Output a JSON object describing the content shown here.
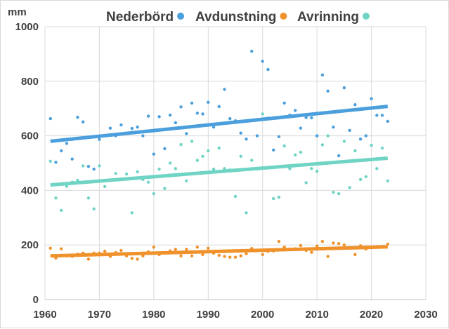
{
  "chart_data": {
    "type": "scatter",
    "title": "",
    "ylabel": "mm",
    "xlabel": "",
    "xlim": [
      1960,
      2030
    ],
    "ylim": [
      0,
      1000
    ],
    "x_ticks": [
      1960,
      1970,
      1980,
      1990,
      2000,
      2010,
      2020,
      2030
    ],
    "y_ticks": [
      0,
      200,
      400,
      600,
      800,
      1000
    ],
    "grid": true,
    "legend_position": "top",
    "series": [
      {
        "name": "Nederbörd",
        "color": "#4a9fdc",
        "trend": {
          "x": [
            1961,
            2023
          ],
          "y": [
            580,
            708
          ]
        },
        "points": [
          [
            1961,
            663
          ],
          [
            1962,
            503
          ],
          [
            1963,
            545
          ],
          [
            1964,
            572
          ],
          [
            1965,
            515
          ],
          [
            1966,
            668
          ],
          [
            1967,
            651
          ],
          [
            1968,
            488
          ],
          [
            1969,
            478
          ],
          [
            1970,
            587
          ],
          [
            1971,
            600
          ],
          [
            1972,
            628
          ],
          [
            1973,
            600
          ],
          [
            1974,
            640
          ],
          [
            1975,
            610
          ],
          [
            1976,
            627
          ],
          [
            1977,
            632
          ],
          [
            1978,
            600
          ],
          [
            1979,
            672
          ],
          [
            1980,
            533
          ],
          [
            1981,
            670
          ],
          [
            1982,
            553
          ],
          [
            1983,
            676
          ],
          [
            1984,
            648
          ],
          [
            1985,
            706
          ],
          [
            1986,
            608
          ],
          [
            1987,
            720
          ],
          [
            1988,
            683
          ],
          [
            1989,
            680
          ],
          [
            1990,
            723
          ],
          [
            1991,
            632
          ],
          [
            1992,
            707
          ],
          [
            1993,
            770
          ],
          [
            1994,
            663
          ],
          [
            1995,
            655
          ],
          [
            1996,
            610
          ],
          [
            1997,
            588
          ],
          [
            1998,
            910
          ],
          [
            1999,
            600
          ],
          [
            2000,
            873
          ],
          [
            2001,
            843
          ],
          [
            2002,
            548
          ],
          [
            2003,
            597
          ],
          [
            2004,
            720
          ],
          [
            2005,
            676
          ],
          [
            2006,
            693
          ],
          [
            2007,
            628
          ],
          [
            2008,
            667
          ],
          [
            2009,
            666
          ],
          [
            2010,
            600
          ],
          [
            2011,
            823
          ],
          [
            2012,
            764
          ],
          [
            2013,
            632
          ],
          [
            2014,
            527
          ],
          [
            2015,
            776
          ],
          [
            2016,
            620
          ],
          [
            2017,
            714
          ],
          [
            2018,
            588
          ],
          [
            2019,
            600
          ],
          [
            2020,
            736
          ],
          [
            2021,
            675
          ],
          [
            2022,
            675
          ],
          [
            2023,
            653
          ]
        ]
      },
      {
        "name": "Avdunstning",
        "color": "#f0922b",
        "trend": {
          "x": [
            1961,
            2023
          ],
          "y": [
            160,
            193
          ]
        },
        "points": [
          [
            1961,
            188
          ],
          [
            1962,
            152
          ],
          [
            1963,
            186
          ],
          [
            1964,
            160
          ],
          [
            1965,
            158
          ],
          [
            1966,
            166
          ],
          [
            1967,
            170
          ],
          [
            1968,
            148
          ],
          [
            1969,
            170
          ],
          [
            1970,
            170
          ],
          [
            1971,
            177
          ],
          [
            1972,
            158
          ],
          [
            1973,
            172
          ],
          [
            1974,
            180
          ],
          [
            1975,
            160
          ],
          [
            1976,
            151
          ],
          [
            1977,
            148
          ],
          [
            1978,
            160
          ],
          [
            1979,
            175
          ],
          [
            1980,
            192
          ],
          [
            1981,
            165
          ],
          [
            1982,
            170
          ],
          [
            1983,
            178
          ],
          [
            1984,
            184
          ],
          [
            1985,
            160
          ],
          [
            1986,
            184
          ],
          [
            1987,
            160
          ],
          [
            1988,
            192
          ],
          [
            1989,
            165
          ],
          [
            1990,
            188
          ],
          [
            1991,
            170
          ],
          [
            1992,
            162
          ],
          [
            1993,
            158
          ],
          [
            1994,
            155
          ],
          [
            1995,
            155
          ],
          [
            1996,
            160
          ],
          [
            1997,
            168
          ],
          [
            1998,
            187
          ],
          [
            1999,
            180
          ],
          [
            2000,
            165
          ],
          [
            2001,
            177
          ],
          [
            2002,
            178
          ],
          [
            2003,
            213
          ],
          [
            2004,
            192
          ],
          [
            2005,
            185
          ],
          [
            2006,
            186
          ],
          [
            2007,
            198
          ],
          [
            2008,
            180
          ],
          [
            2009,
            173
          ],
          [
            2010,
            196
          ],
          [
            2011,
            213
          ],
          [
            2012,
            158
          ],
          [
            2013,
            207
          ],
          [
            2014,
            205
          ],
          [
            2015,
            200
          ],
          [
            2016,
            190
          ],
          [
            2017,
            165
          ],
          [
            2018,
            197
          ],
          [
            2019,
            185
          ],
          [
            2020,
            190
          ],
          [
            2021,
            194
          ],
          [
            2022,
            195
          ],
          [
            2023,
            203
          ]
        ]
      },
      {
        "name": "Avrinning",
        "color": "#6fd4c4",
        "trend": {
          "x": [
            1961,
            2023
          ],
          "y": [
            420,
            518
          ]
        },
        "points": [
          [
            1961,
            507
          ],
          [
            1962,
            372
          ],
          [
            1963,
            327
          ],
          [
            1964,
            415
          ],
          [
            1965,
            430
          ],
          [
            1966,
            437
          ],
          [
            1967,
            490
          ],
          [
            1968,
            372
          ],
          [
            1969,
            332
          ],
          [
            1970,
            490
          ],
          [
            1971,
            414
          ],
          [
            1972,
            438
          ],
          [
            1973,
            462
          ],
          [
            1974,
            440
          ],
          [
            1975,
            460
          ],
          [
            1976,
            318
          ],
          [
            1977,
            468
          ],
          [
            1978,
            440
          ],
          [
            1979,
            430
          ],
          [
            1980,
            388
          ],
          [
            1981,
            478
          ],
          [
            1982,
            407
          ],
          [
            1983,
            500
          ],
          [
            1984,
            480
          ],
          [
            1985,
            568
          ],
          [
            1986,
            435
          ],
          [
            1987,
            580
          ],
          [
            1988,
            510
          ],
          [
            1989,
            525
          ],
          [
            1990,
            545
          ],
          [
            1991,
            478
          ],
          [
            1992,
            555
          ],
          [
            1993,
            480
          ],
          [
            1994,
            475
          ],
          [
            1995,
            378
          ],
          [
            1996,
            525
          ],
          [
            1997,
            318
          ],
          [
            1998,
            510
          ],
          [
            1999,
            478
          ],
          [
            2000,
            680
          ],
          [
            2001,
            665
          ],
          [
            2002,
            370
          ],
          [
            2003,
            375
          ],
          [
            2004,
            563
          ],
          [
            2005,
            480
          ],
          [
            2006,
            530
          ],
          [
            2007,
            540
          ],
          [
            2008,
            428
          ],
          [
            2009,
            480
          ],
          [
            2010,
            470
          ],
          [
            2011,
            567
          ],
          [
            2012,
            600
          ],
          [
            2013,
            393
          ],
          [
            2014,
            388
          ],
          [
            2015,
            580
          ],
          [
            2016,
            410
          ],
          [
            2017,
            545
          ],
          [
            2018,
            440
          ],
          [
            2019,
            450
          ],
          [
            2020,
            565
          ],
          [
            2021,
            480
          ],
          [
            2022,
            555
          ],
          [
            2023,
            435
          ]
        ]
      }
    ]
  }
}
